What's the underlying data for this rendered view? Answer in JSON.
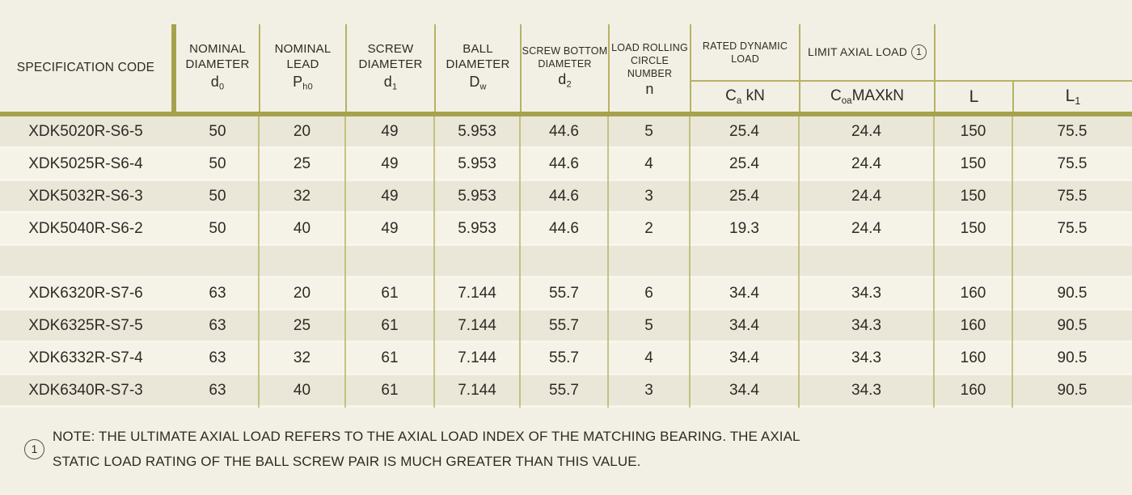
{
  "colors": {
    "background": "#f2f0e4",
    "row_dark": "#eae7d8",
    "row_light": "#f5f3e7",
    "line_olive_thick": "#a5a24e",
    "line_olive_thin": "#b6b364",
    "text": "#2d2b25"
  },
  "table": {
    "columns": [
      {
        "id": "spec",
        "label": "SPECIFICATION CODE"
      },
      {
        "id": "d0",
        "lines": [
          "NOMINAL",
          "DIAMETER"
        ],
        "sym": {
          "base": "d",
          "sub": "0"
        }
      },
      {
        "id": "ph0",
        "lines": [
          "NOMINAL",
          "LEAD"
        ],
        "sym": {
          "base": "P",
          "sub": "h0"
        }
      },
      {
        "id": "d1",
        "lines": [
          "SCREW",
          "DIAMETER"
        ],
        "sym": {
          "base": "d",
          "sub": "1"
        }
      },
      {
        "id": "dw",
        "lines": [
          "BALL",
          "DIAMETER"
        ],
        "sym": {
          "base": "D",
          "sub": "w"
        }
      },
      {
        "id": "d2",
        "lines": [
          "SCREW BOTTOM",
          "DIAMETER"
        ],
        "sym": {
          "base": "d",
          "sub": "2"
        }
      },
      {
        "id": "n",
        "lines": [
          "LOAD ROLLING",
          "CIRCLE NUMBER"
        ],
        "sym": {
          "base": "n",
          "sub": ""
        }
      },
      {
        "id": "ca",
        "lines": [
          "RATED DYNAMIC",
          "LOAD"
        ],
        "sym": {
          "base": "C",
          "sub": "a",
          "rest": " kN"
        }
      },
      {
        "id": "coa",
        "label": "LIMIT AXIAL LOAD",
        "note_ref": "1",
        "sym": {
          "base": "C",
          "sub": "oa",
          "rest": "MAXkN"
        }
      },
      {
        "id": "L",
        "sym": {
          "base": "L",
          "sub": ""
        }
      },
      {
        "id": "L1",
        "sym": {
          "base": "L",
          "sub": "1"
        }
      }
    ],
    "rows": [
      [
        "XDK5020R-S6-5",
        "50",
        "20",
        "49",
        "5.953",
        "44.6",
        "5",
        "25.4",
        "24.4",
        "150",
        "75.5"
      ],
      [
        "XDK5025R-S6-4",
        "50",
        "25",
        "49",
        "5.953",
        "44.6",
        "4",
        "25.4",
        "24.4",
        "150",
        "75.5"
      ],
      [
        "XDK5032R-S6-3",
        "50",
        "32",
        "49",
        "5.953",
        "44.6",
        "3",
        "25.4",
        "24.4",
        "150",
        "75.5"
      ],
      [
        "XDK5040R-S6-2",
        "50",
        "40",
        "49",
        "5.953",
        "44.6",
        "2",
        "19.3",
        "24.4",
        "150",
        "75.5"
      ],
      [
        "",
        "",
        "",
        "",
        "",
        "",
        "",
        "",
        "",
        "",
        ""
      ],
      [
        "XDK6320R-S7-6",
        "63",
        "20",
        "61",
        "7.144",
        "55.7",
        "6",
        "34.4",
        "34.3",
        "160",
        "90.5"
      ],
      [
        "XDK6325R-S7-5",
        "63",
        "25",
        "61",
        "7.144",
        "55.7",
        "5",
        "34.4",
        "34.3",
        "160",
        "90.5"
      ],
      [
        "XDK6332R-S7-4",
        "63",
        "32",
        "61",
        "7.144",
        "55.7",
        "4",
        "34.4",
        "34.3",
        "160",
        "90.5"
      ],
      [
        "XDK6340R-S7-3",
        "63",
        "40",
        "61",
        "7.144",
        "55.7",
        "3",
        "34.4",
        "34.3",
        "160",
        "90.5"
      ]
    ]
  },
  "note": {
    "ref": "1",
    "line1": "NOTE: THE ULTIMATE AXIAL LOAD REFERS TO THE AXIAL LOAD INDEX OF THE MATCHING BEARING. THE AXIAL",
    "line2": "STATIC LOAD RATING OF THE BALL SCREW PAIR IS MUCH GREATER THAN THIS VALUE."
  }
}
